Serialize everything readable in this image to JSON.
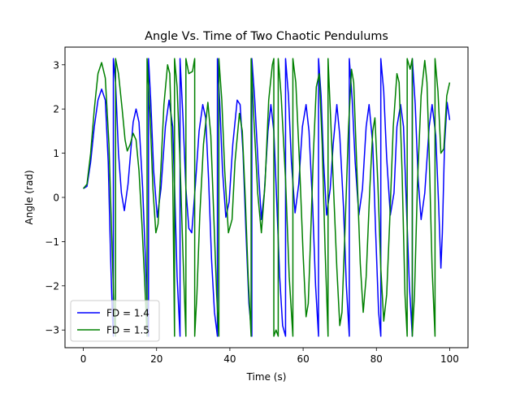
{
  "chart_data": {
    "type": "line",
    "title": "Angle Vs. Time of Two Chaotic Pendulums",
    "xlabel": "Time (s)",
    "ylabel": "Angle (rad)",
    "xlim": [
      -5,
      105
    ],
    "ylim": [
      -3.4,
      3.4
    ],
    "xticks": [
      0,
      20,
      40,
      60,
      80,
      100
    ],
    "yticks": [
      -3,
      -2,
      -1,
      0,
      1,
      2,
      3
    ],
    "grid": false,
    "legend_position": "lower left",
    "series": [
      {
        "name": "FD = 1.4",
        "color": "#0000ff",
        "points": [
          [
            0,
            0.2
          ],
          [
            1,
            0.25
          ],
          [
            2,
            0.8
          ],
          [
            3,
            1.6
          ],
          [
            4,
            2.2
          ],
          [
            5,
            2.45
          ],
          [
            6,
            2.2
          ],
          [
            6.8,
            0.8
          ],
          [
            7.4,
            -1.2
          ],
          [
            7.9,
            -2.6
          ],
          [
            8.2,
            -3.14
          ],
          [
            8.2,
            3.14
          ],
          [
            8.8,
            2.6
          ],
          [
            9.6,
            1.0
          ],
          [
            10.4,
            0.1
          ],
          [
            11.2,
            -0.3
          ],
          [
            12.2,
            0.3
          ],
          [
            13.6,
            1.7
          ],
          [
            14.4,
            2.0
          ],
          [
            15.2,
            1.7
          ],
          [
            16.2,
            0.2
          ],
          [
            17.0,
            -1.5
          ],
          [
            17.6,
            -2.8
          ],
          [
            17.8,
            -3.14
          ],
          [
            17.8,
            3.14
          ],
          [
            18.4,
            2.2
          ],
          [
            19.2,
            0.6
          ],
          [
            20.2,
            -0.45
          ],
          [
            21.2,
            0.2
          ],
          [
            22.4,
            1.6
          ],
          [
            23.4,
            2.2
          ],
          [
            24.4,
            1.6
          ],
          [
            25.0,
            0.0
          ],
          [
            25.6,
            -1.8
          ],
          [
            26.4,
            -3.14
          ],
          [
            26.4,
            3.14
          ],
          [
            27.2,
            1.8
          ],
          [
            28.0,
            0.2
          ],
          [
            28.8,
            -0.7
          ],
          [
            29.6,
            -0.8
          ],
          [
            30.6,
            0.3
          ],
          [
            31.6,
            1.5
          ],
          [
            32.6,
            2.1
          ],
          [
            33.4,
            1.8
          ],
          [
            34.2,
            0.4
          ],
          [
            35.0,
            -1.4
          ],
          [
            35.8,
            -2.6
          ],
          [
            36.6,
            -3.14
          ],
          [
            36.6,
            3.14
          ],
          [
            37.2,
            2.2
          ],
          [
            38.0,
            0.6
          ],
          [
            38.9,
            -0.45
          ],
          [
            39.8,
            -0.1
          ],
          [
            40.8,
            1.2
          ],
          [
            42.0,
            2.2
          ],
          [
            42.8,
            2.1
          ],
          [
            43.6,
            1.0
          ],
          [
            44.4,
            -0.8
          ],
          [
            45.2,
            -2.4
          ],
          [
            46.0,
            -3.14
          ],
          [
            46.0,
            3.14
          ],
          [
            46.8,
            2.2
          ],
          [
            47.8,
            0.6
          ],
          [
            48.6,
            -0.5
          ],
          [
            49.4,
            0.1
          ],
          [
            50.4,
            1.5
          ],
          [
            51.2,
            2.1
          ],
          [
            52.0,
            1.5
          ],
          [
            52.8,
            -0.1
          ],
          [
            53.6,
            -1.8
          ],
          [
            54.4,
            -2.9
          ],
          [
            55.2,
            -3.14
          ],
          [
            55.2,
            3.14
          ],
          [
            56.0,
            2.3
          ],
          [
            56.8,
            0.8
          ],
          [
            57.8,
            -0.35
          ],
          [
            58.8,
            0.3
          ],
          [
            59.8,
            1.6
          ],
          [
            60.8,
            2.1
          ],
          [
            61.6,
            1.5
          ],
          [
            62.6,
            -0.2
          ],
          [
            63.4,
            -2.0
          ],
          [
            64.2,
            -3.14
          ],
          [
            64.2,
            3.14
          ],
          [
            64.9,
            2.3
          ],
          [
            65.6,
            0.8
          ],
          [
            66.4,
            -0.4
          ],
          [
            67.4,
            0.2
          ],
          [
            68.2,
            1.2
          ],
          [
            69.2,
            2.1
          ],
          [
            70.0,
            1.4
          ],
          [
            71.0,
            -0.2
          ],
          [
            71.8,
            -2.0
          ],
          [
            72.6,
            -3.14
          ],
          [
            72.6,
            3.14
          ],
          [
            73.4,
            2.2
          ],
          [
            74.2,
            0.8
          ],
          [
            75.2,
            -0.4
          ],
          [
            76.2,
            0.2
          ],
          [
            77.2,
            1.6
          ],
          [
            78.0,
            2.1
          ],
          [
            79.0,
            1.2
          ],
          [
            79.8,
            -0.8
          ],
          [
            80.6,
            -2.6
          ],
          [
            81.2,
            -3.14
          ],
          [
            81.2,
            3.14
          ],
          [
            82.0,
            2.4
          ],
          [
            82.8,
            0.9
          ],
          [
            83.8,
            -0.4
          ],
          [
            84.8,
            0.1
          ],
          [
            85.6,
            1.6
          ],
          [
            86.6,
            2.1
          ],
          [
            87.4,
            1.6
          ],
          [
            88.2,
            -0.2
          ],
          [
            89.0,
            -2.0
          ],
          [
            89.8,
            -3.14
          ],
          [
            89.8,
            3.14
          ],
          [
            90.6,
            2.1
          ],
          [
            91.4,
            0.4
          ],
          [
            92.2,
            -0.5
          ],
          [
            93.2,
            0.1
          ],
          [
            94.4,
            1.6
          ],
          [
            95.2,
            2.1
          ],
          [
            96.2,
            1.4
          ],
          [
            97.0,
            -0.2
          ],
          [
            97.6,
            -1.6
          ],
          [
            98.0,
            -0.8
          ],
          [
            98.6,
            1.2
          ],
          [
            99.3,
            2.15
          ],
          [
            100,
            1.75
          ]
        ]
      },
      {
        "name": "FD = 1.5",
        "color": "#008000",
        "points": [
          [
            0,
            0.2
          ],
          [
            1,
            0.3
          ],
          [
            2,
            1.0
          ],
          [
            3,
            2.0
          ],
          [
            4,
            2.8
          ],
          [
            5,
            3.05
          ],
          [
            6,
            2.7
          ],
          [
            7.0,
            1.2
          ],
          [
            7.8,
            -1.0
          ],
          [
            8.5,
            -2.8
          ],
          [
            8.8,
            -3.14
          ],
          [
            8.8,
            3.14
          ],
          [
            9.6,
            2.8
          ],
          [
            10.6,
            2.0
          ],
          [
            11.4,
            1.3
          ],
          [
            12.0,
            1.05
          ],
          [
            12.8,
            1.2
          ],
          [
            13.6,
            1.45
          ],
          [
            14.4,
            1.3
          ],
          [
            15.2,
            0.6
          ],
          [
            16.0,
            -0.6
          ],
          [
            16.8,
            -2.0
          ],
          [
            17.4,
            -3.14
          ],
          [
            17.4,
            3.14
          ],
          [
            18.2,
            1.9
          ],
          [
            19.0,
            0.2
          ],
          [
            19.8,
            -0.8
          ],
          [
            20.4,
            -0.6
          ],
          [
            21.2,
            0.7
          ],
          [
            22.0,
            2.1
          ],
          [
            23.0,
            3.0
          ],
          [
            23.6,
            2.8
          ],
          [
            24.4,
            0.5
          ],
          [
            24.9,
            -3.14
          ],
          [
            24.9,
            3.14
          ],
          [
            25.6,
            2.5
          ],
          [
            26.4,
            0.8
          ],
          [
            27.2,
            -1.3
          ],
          [
            28.0,
            -3.14
          ],
          [
            28.0,
            3.14
          ],
          [
            28.8,
            2.8
          ],
          [
            29.8,
            2.85
          ],
          [
            30.4,
            3.14
          ],
          [
            30.4,
            -3.14
          ],
          [
            31.0,
            -2.2
          ],
          [
            31.8,
            -0.4
          ],
          [
            32.8,
            1.2
          ],
          [
            34.0,
            2.15
          ],
          [
            34.8,
            1.4
          ],
          [
            35.6,
            -0.4
          ],
          [
            36.4,
            -2.2
          ],
          [
            37.0,
            -3.14
          ],
          [
            37.0,
            3.14
          ],
          [
            37.8,
            2.2
          ],
          [
            38.6,
            0.6
          ],
          [
            39.6,
            -0.8
          ],
          [
            40.6,
            -0.5
          ],
          [
            41.4,
            0.8
          ],
          [
            42.6,
            1.9
          ],
          [
            43.4,
            1.5
          ],
          [
            44.2,
            0.0
          ],
          [
            45.0,
            -1.8
          ],
          [
            45.8,
            -3.14
          ],
          [
            45.8,
            3.14
          ],
          [
            46.6,
            1.7
          ],
          [
            47.6,
            0.1
          ],
          [
            48.6,
            -0.8
          ],
          [
            49.6,
            0.3
          ],
          [
            50.6,
            2.2
          ],
          [
            51.6,
            3.0
          ],
          [
            52.0,
            3.14
          ],
          [
            52.0,
            -3.14
          ],
          [
            52.6,
            -3.0
          ],
          [
            53.2,
            -3.14
          ],
          [
            53.2,
            3.14
          ],
          [
            54.0,
            2.3
          ],
          [
            55.2,
            0.4
          ],
          [
            56.2,
            -1.8
          ],
          [
            57.2,
            -3.14
          ],
          [
            57.2,
            3.14
          ],
          [
            58.0,
            2.6
          ],
          [
            59.0,
            0.8
          ],
          [
            60.0,
            -1.3
          ],
          [
            60.8,
            -2.7
          ],
          [
            61.4,
            -2.4
          ],
          [
            62.0,
            -1.0
          ],
          [
            62.8,
            1.0
          ],
          [
            63.6,
            2.5
          ],
          [
            64.4,
            2.8
          ],
          [
            65.2,
            1.2
          ],
          [
            66.0,
            -1.2
          ],
          [
            66.8,
            -3.14
          ],
          [
            66.8,
            3.14
          ],
          [
            67.4,
            2.0
          ],
          [
            68.2,
            0.4
          ],
          [
            69.2,
            -1.6
          ],
          [
            70.0,
            -2.9
          ],
          [
            70.6,
            -2.6
          ],
          [
            71.4,
            -0.8
          ],
          [
            72.4,
            1.6
          ],
          [
            73.2,
            2.9
          ],
          [
            73.8,
            2.6
          ],
          [
            74.6,
            0.8
          ],
          [
            75.6,
            -1.5
          ],
          [
            76.4,
            -2.6
          ],
          [
            77.2,
            -1.8
          ],
          [
            78.2,
            0.2
          ],
          [
            79.0,
            1.5
          ],
          [
            79.6,
            1.8
          ],
          [
            80.4,
            0.3
          ],
          [
            81.2,
            -1.6
          ],
          [
            82.0,
            -2.8
          ],
          [
            82.8,
            -2.2
          ],
          [
            83.6,
            -0.6
          ],
          [
            84.6,
            1.6
          ],
          [
            85.6,
            2.8
          ],
          [
            86.2,
            2.6
          ],
          [
            87.0,
            0.6
          ],
          [
            87.8,
            -2.2
          ],
          [
            88.4,
            -3.14
          ],
          [
            88.4,
            3.14
          ],
          [
            89.2,
            2.9
          ],
          [
            89.8,
            3.14
          ],
          [
            89.8,
            -3.14
          ],
          [
            90.4,
            -2.2
          ],
          [
            91.2,
            0.3
          ],
          [
            92.2,
            2.3
          ],
          [
            93.2,
            3.1
          ],
          [
            93.8,
            2.6
          ],
          [
            94.4,
            1.0
          ],
          [
            95.2,
            -1.6
          ],
          [
            96.0,
            -3.14
          ],
          [
            96.0,
            3.14
          ],
          [
            96.8,
            2.4
          ],
          [
            97.6,
            1.0
          ],
          [
            98.4,
            1.1
          ],
          [
            99.2,
            2.3
          ],
          [
            100,
            2.6
          ]
        ]
      }
    ]
  }
}
